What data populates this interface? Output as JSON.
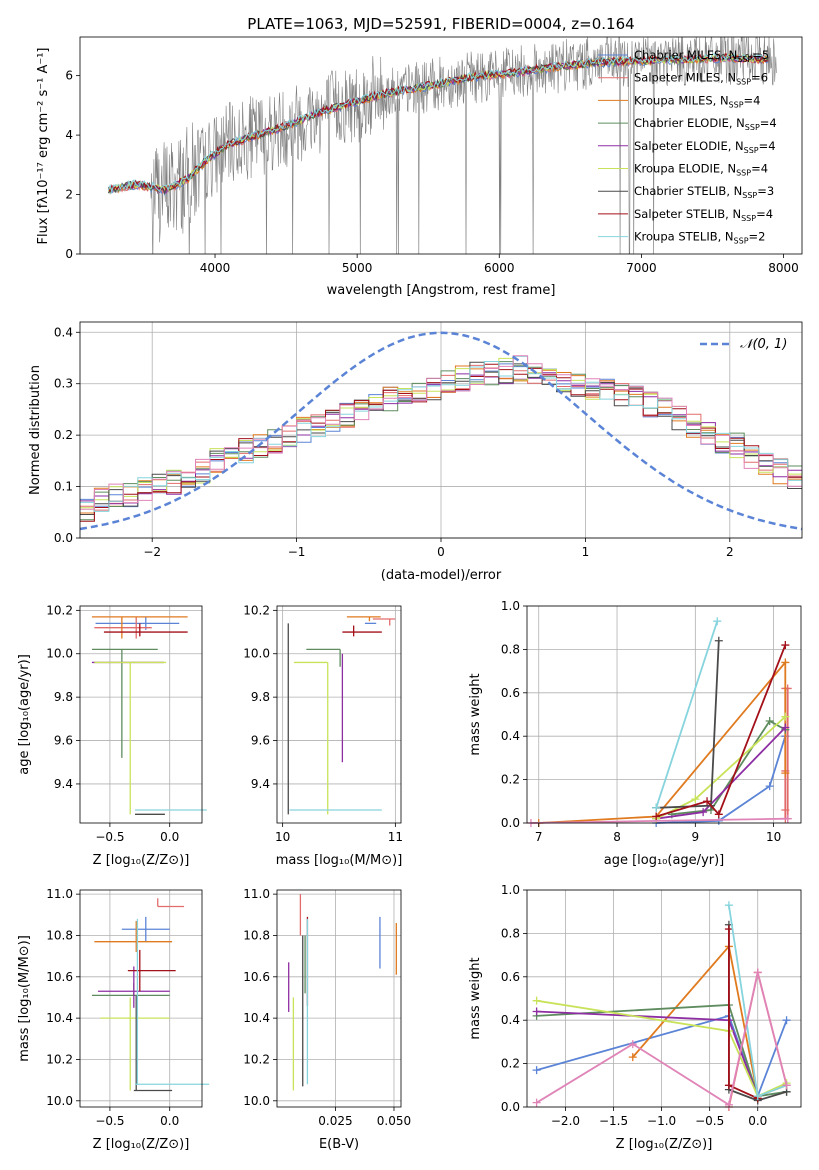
{
  "colors": {
    "c0": "#5b84d6",
    "c1": "#e26c6c",
    "c2": "#e07a1f",
    "c3": "#5e8c5e",
    "c4": "#8e2ea3",
    "c5": "#c8e35a",
    "c6": "#4a4a4a",
    "c7": "#a3101a",
    "c8": "#86d4dd",
    "c9": "#e084b8",
    "gray": "#808080",
    "normal": "#5b84d6"
  },
  "chart_data": [
    {
      "type": "line",
      "title": "PLATE=1063, MJD=52591, FIBERID=0004, z=0.164",
      "xlabel": "wavelength [Angstrom, rest frame]",
      "ylabel": "Flux [fλ10⁻¹⁷ erg cm⁻² s⁻¹ A⁻¹]",
      "xlim": [
        3050,
        8130
      ],
      "ylim": [
        0,
        7.3
      ],
      "xticks": [
        4000,
        5000,
        6000,
        7000,
        8000
      ],
      "yticks": [
        0,
        2,
        4,
        6
      ],
      "grid": false,
      "legend_position": "right",
      "series": [
        {
          "name": "Chabrier MILES, N",
          "sub": "SSP",
          "suffix": "=5",
          "color": "c0"
        },
        {
          "name": "Salpeter MILES, N",
          "sub": "SSP",
          "suffix": "=6",
          "color": "c1"
        },
        {
          "name": "Kroupa MILES, N",
          "sub": "SSP",
          "suffix": "=4",
          "color": "c2"
        },
        {
          "name": "Chabrier ELODIE, N",
          "sub": "SSP",
          "suffix": "=4",
          "color": "c3"
        },
        {
          "name": "Salpeter ELODIE, N",
          "sub": "SSP",
          "suffix": "=4",
          "color": "c4"
        },
        {
          "name": "Kroupa ELODIE, N",
          "sub": "SSP",
          "suffix": "=4",
          "color": "c5"
        },
        {
          "name": "Chabrier STELIB, N",
          "sub": "SSP",
          "suffix": "=3",
          "color": "c6"
        },
        {
          "name": "Salpeter STELIB, N",
          "sub": "SSP",
          "suffix": "=4",
          "color": "c7"
        },
        {
          "name": "Kroupa STELIB, N",
          "sub": "SSP",
          "suffix": "=2",
          "color": "c8"
        }
      ],
      "continuum": [
        [
          3250,
          2.15
        ],
        [
          3450,
          2.35
        ],
        [
          3650,
          2.15
        ],
        [
          3800,
          2.5
        ],
        [
          3950,
          3.2
        ],
        [
          4100,
          3.7
        ],
        [
          4300,
          4.0
        ],
        [
          4500,
          4.3
        ],
        [
          4700,
          4.7
        ],
        [
          4900,
          5.0
        ],
        [
          5200,
          5.4
        ],
        [
          5500,
          5.65
        ],
        [
          5800,
          5.95
        ],
        [
          6100,
          6.1
        ],
        [
          6400,
          6.3
        ],
        [
          6700,
          6.45
        ],
        [
          7000,
          6.5
        ],
        [
          7300,
          6.55
        ],
        [
          7600,
          6.6
        ],
        [
          7900,
          6.55
        ]
      ]
    },
    {
      "type": "histogram",
      "xlabel": "(data-model)/error",
      "ylabel": "Normed distribution",
      "xlim": [
        -2.5,
        2.5
      ],
      "ylim": [
        0,
        0.42
      ],
      "xticks": [
        -2,
        -1,
        0,
        1,
        2
      ],
      "yticks": [
        0.0,
        0.1,
        0.2,
        0.3,
        0.4
      ],
      "grid": true,
      "legend": "𝒩(0, 1)",
      "normal_curve": {
        "mu": 0,
        "sigma": 1
      },
      "bin_width": 0.1,
      "base_profile": [
        0.055,
        0.075,
        0.085,
        0.085,
        0.095,
        0.1,
        0.11,
        0.12,
        0.13,
        0.15,
        0.16,
        0.17,
        0.18,
        0.19,
        0.2,
        0.21,
        0.22,
        0.23,
        0.24,
        0.25,
        0.26,
        0.27,
        0.275,
        0.28,
        0.29,
        0.3,
        0.31,
        0.32,
        0.32,
        0.325,
        0.33,
        0.32,
        0.31,
        0.3,
        0.295,
        0.29,
        0.29,
        0.28,
        0.27,
        0.26,
        0.25,
        0.235,
        0.22,
        0.2,
        0.19,
        0.18,
        0.16,
        0.145,
        0.13,
        0.12
      ]
    },
    {
      "type": "errorbar",
      "xlabel": "Z [log₁₀(Z/Z⊙)]",
      "ylabel": "age  [log₁₀(age/yr)]",
      "xlim": [
        -0.75,
        0.27
      ],
      "ylim": [
        9.22,
        10.22
      ],
      "xticks": [
        -0.5,
        0.0
      ],
      "yticks": [
        9.4,
        9.6,
        9.8,
        10.0,
        10.2
      ],
      "points": [
        {
          "color": "c0",
          "x": -0.2,
          "xerr": [
            0.42,
            0.28
          ],
          "y": 10.14,
          "yerr": [
            0.03,
            0.03
          ]
        },
        {
          "color": "c1",
          "x": -0.28,
          "xerr": [
            0.35,
            0.13
          ],
          "y": 10.12,
          "yerr": [
            0.05,
            0.05
          ]
        },
        {
          "color": "c2",
          "x": -0.4,
          "xerr": [
            0.25,
            0.55
          ],
          "y": 10.17,
          "yerr": [
            0.1,
            0.0
          ]
        },
        {
          "color": "c3",
          "x": -0.4,
          "xerr": [
            0.25,
            0.3
          ],
          "y": 10.02,
          "yerr": [
            0.5,
            0.0
          ]
        },
        {
          "color": "c4",
          "x": -0.35,
          "xerr": [
            0.3,
            0.3
          ],
          "y": 9.96,
          "yerr": [
            0.0,
            0.0
          ]
        },
        {
          "color": "c5",
          "x": -0.33,
          "xerr": [
            0.3,
            0.3
          ],
          "y": 9.96,
          "yerr": [
            0.7,
            0.0
          ]
        },
        {
          "color": "c6",
          "x": -0.29,
          "xerr": [
            0.0,
            0.25
          ],
          "y": 9.26,
          "yerr": [
            0.0,
            0.0
          ]
        },
        {
          "color": "c7",
          "x": -0.25,
          "xerr": [
            0.3,
            0.4
          ],
          "y": 10.1,
          "yerr": [
            0.02,
            0.04
          ]
        },
        {
          "color": "c8",
          "x": -0.27,
          "xerr": [
            0.02,
            0.58
          ],
          "y": 9.28,
          "yerr": [
            0.0,
            0.0
          ]
        }
      ]
    },
    {
      "type": "errorbar",
      "xlabel": "mass [log₁₀(M/M⊙)]",
      "ylabel": "",
      "xlim": [
        9.95,
        11.05
      ],
      "ylim": [
        9.22,
        10.22
      ],
      "xticks": [
        10,
        11
      ],
      "yticks": [
        9.4,
        9.6,
        9.8,
        10.0,
        10.2
      ],
      "points": [
        {
          "color": "c0",
          "x": 10.83,
          "xerr": [
            0.1,
            0.0
          ],
          "y": 10.14,
          "yerr": [
            0.0,
            0.0
          ]
        },
        {
          "color": "c1",
          "x": 10.95,
          "xerr": [
            0.15,
            0.05
          ],
          "y": 10.16,
          "yerr": [
            0.03,
            0.0
          ]
        },
        {
          "color": "c2",
          "x": 10.77,
          "xerr": [
            0.2,
            0.1
          ],
          "y": 10.17,
          "yerr": [
            0.02,
            0.0
          ]
        },
        {
          "color": "c3",
          "x": 10.51,
          "xerr": [
            0.3,
            0.0
          ],
          "y": 10.02,
          "yerr": [
            0.08,
            0.0
          ]
        },
        {
          "color": "c4",
          "x": 10.53,
          "xerr": [
            0.0,
            0.0
          ],
          "y": 10.0,
          "yerr": [
            0.5,
            0.0
          ]
        },
        {
          "color": "c5",
          "x": 10.4,
          "xerr": [
            0.3,
            0.0
          ],
          "y": 9.96,
          "yerr": [
            0.7,
            0.0
          ]
        },
        {
          "color": "c6",
          "x": 10.05,
          "xerr": [
            0.0,
            0.0
          ],
          "y": 9.26,
          "yerr": [
            0.0,
            0.88
          ]
        },
        {
          "color": "c7",
          "x": 10.63,
          "xerr": [
            0.1,
            0.25
          ],
          "y": 10.1,
          "yerr": [
            0.02,
            0.03
          ]
        },
        {
          "color": "c8",
          "x": 10.08,
          "xerr": [
            0.02,
            0.8
          ],
          "y": 9.28,
          "yerr": [
            0.0,
            0.0
          ]
        }
      ]
    },
    {
      "type": "line",
      "xlabel": "age  [log₁₀(age/yr)]",
      "ylabel": "mass weight",
      "xlim": [
        6.85,
        10.35
      ],
      "ylim": [
        0,
        1.0
      ],
      "xticks": [
        7,
        8,
        9,
        10
      ],
      "yticks": [
        0.0,
        0.2,
        0.4,
        0.6,
        0.8,
        1.0
      ],
      "grid": true,
      "series": [
        {
          "color": "c0",
          "x": [
            8.5,
            9.3,
            9.95,
            10.15
          ],
          "y": [
            0.0,
            0.01,
            0.17,
            0.4
          ]
        },
        {
          "color": "c1",
          "x": [
            10.15,
            10.15,
            10.15,
            10.15,
            10.18,
            10.18
          ],
          "y": [
            0.02,
            0.06,
            0.24,
            0.62,
            0.62,
            0.02
          ]
        },
        {
          "color": "c2",
          "x": [
            7.0,
            8.5,
            10.15,
            10.15
          ],
          "y": [
            0.0,
            0.03,
            0.74,
            0.23
          ]
        },
        {
          "color": "c3",
          "x": [
            8.7,
            9.2,
            9.95,
            10.15
          ],
          "y": [
            0.04,
            0.06,
            0.47,
            0.43
          ]
        },
        {
          "color": "c4",
          "x": [
            8.5,
            9.1,
            10.15
          ],
          "y": [
            0.02,
            0.05,
            0.44
          ]
        },
        {
          "color": "c5",
          "x": [
            8.5,
            9.0,
            10.15
          ],
          "y": [
            0.02,
            0.11,
            0.49
          ]
        },
        {
          "color": "c6",
          "x": [
            8.5,
            9.2,
            9.3
          ],
          "y": [
            0.07,
            0.08,
            0.84
          ]
        },
        {
          "color": "c7",
          "x": [
            8.5,
            9.15,
            9.3,
            10.15
          ],
          "y": [
            0.03,
            0.1,
            0.04,
            0.82
          ]
        },
        {
          "color": "c8",
          "x": [
            8.5,
            9.28
          ],
          "y": [
            0.07,
            0.93
          ]
        },
        {
          "color": "c9",
          "x": [
            6.9,
            10.18
          ],
          "y": [
            0.0,
            0.02
          ]
        }
      ]
    },
    {
      "type": "errorbar",
      "xlabel": "Z [log₁₀(Z/Z⊙)]",
      "ylabel": "mass [log₁₀(M/M⊙)]",
      "xlim": [
        -0.75,
        0.27
      ],
      "ylim": [
        9.97,
        11.02
      ],
      "xticks": [
        -0.5,
        0.0
      ],
      "yticks": [
        10.0,
        10.2,
        10.4,
        10.6,
        10.8,
        11.0
      ],
      "points": [
        {
          "color": "c0",
          "x": -0.2,
          "xerr": [
            0.2,
            0.2
          ],
          "y": 10.83,
          "yerr": [
            0.06,
            0.06
          ]
        },
        {
          "color": "c1",
          "x": -0.1,
          "xerr": [
            0.0,
            0.22
          ],
          "y": 10.94,
          "yerr": [
            0.0,
            0.04
          ]
        },
        {
          "color": "c2",
          "x": -0.28,
          "xerr": [
            0.35,
            0.3
          ],
          "y": 10.77,
          "yerr": [
            0.05,
            0.1
          ]
        },
        {
          "color": "c3",
          "x": -0.3,
          "xerr": [
            0.35,
            0.3
          ],
          "y": 10.51,
          "yerr": [
            0.0,
            0.06
          ]
        },
        {
          "color": "c4",
          "x": -0.3,
          "xerr": [
            0.3,
            0.3
          ],
          "y": 10.53,
          "yerr": [
            0.08,
            0.12
          ]
        },
        {
          "color": "c5",
          "x": -0.33,
          "xerr": [
            0.25,
            0.33
          ],
          "y": 10.4,
          "yerr": [
            0.35,
            0.1
          ]
        },
        {
          "color": "c6",
          "x": -0.28,
          "xerr": [
            0.02,
            0.3
          ],
          "y": 10.05,
          "yerr": [
            0.0,
            0.46
          ]
        },
        {
          "color": "c7",
          "x": -0.25,
          "xerr": [
            0.1,
            0.3
          ],
          "y": 10.63,
          "yerr": [
            0.1,
            0.1
          ]
        },
        {
          "color": "c8",
          "x": -0.27,
          "xerr": [
            0.02,
            0.6
          ],
          "y": 10.08,
          "yerr": [
            0.0,
            0.8
          ]
        }
      ]
    },
    {
      "type": "errorbar",
      "xlabel": "E(B-V)",
      "ylabel": "",
      "xlim": [
        0.0,
        0.053
      ],
      "ylim": [
        9.97,
        11.02
      ],
      "xticks": [
        0.025,
        0.05
      ],
      "yticks": [
        10.0,
        10.2,
        10.4,
        10.6,
        10.8,
        11.0
      ],
      "points": [
        {
          "color": "c0",
          "x": 0.044,
          "xerr": [
            0.0,
            0.0
          ],
          "y": 10.76,
          "yerr": [
            0.12,
            0.13
          ]
        },
        {
          "color": "c1",
          "x": 0.01,
          "xerr": [
            0.0,
            0.0
          ],
          "y": 10.9,
          "yerr": [
            0.1,
            0.1
          ]
        },
        {
          "color": "c2",
          "x": 0.051,
          "xerr": [
            0.0,
            0.0
          ],
          "y": 10.74,
          "yerr": [
            0.13,
            0.12
          ]
        },
        {
          "color": "c3",
          "x": 0.012,
          "xerr": [
            0.0,
            0.0
          ],
          "y": 10.6,
          "yerr": [
            0.08,
            0.2
          ]
        },
        {
          "color": "c4",
          "x": 0.005,
          "xerr": [
            0.0,
            0.0
          ],
          "y": 10.53,
          "yerr": [
            0.1,
            0.14
          ]
        },
        {
          "color": "c5",
          "x": 0.007,
          "xerr": [
            0.0,
            0.0
          ],
          "y": 10.4,
          "yerr": [
            0.35,
            0.1
          ]
        },
        {
          "color": "c6",
          "x": 0.011,
          "xerr": [
            0.0,
            0.0
          ],
          "y": 10.45,
          "yerr": [
            0.38,
            0.35
          ]
        },
        {
          "color": "c7",
          "x": 0.013,
          "xerr": [
            0.0,
            0.0
          ],
          "y": 10.66,
          "yerr": [
            0.2,
            0.23
          ]
        },
        {
          "color": "c8",
          "x": 0.013,
          "xerr": [
            0.0,
            0.0
          ],
          "y": 10.5,
          "yerr": [
            0.42,
            0.38
          ]
        }
      ]
    },
    {
      "type": "line",
      "xlabel": "Z [log₁₀(Z/Z⊙)]",
      "ylabel": "mass weight",
      "xlim": [
        -2.4,
        0.45
      ],
      "ylim": [
        0,
        1.0
      ],
      "xticks": [
        -2.0,
        -1.5,
        -1.0,
        -0.5,
        0.0
      ],
      "yticks": [
        0.0,
        0.2,
        0.4,
        0.6,
        0.8,
        1.0
      ],
      "grid": true,
      "series": [
        {
          "color": "c0",
          "x": [
            -2.3,
            -0.3,
            0.0,
            0.3
          ],
          "y": [
            0.17,
            0.42,
            0.05,
            0.4
          ]
        },
        {
          "color": "c1",
          "x": [
            -0.3,
            0.0,
            0.3
          ],
          "y": [
            0.0,
            0.62,
            0.1
          ]
        },
        {
          "color": "c2",
          "x": [
            -1.3,
            -0.3,
            0.0,
            0.3
          ],
          "y": [
            0.23,
            0.74,
            0.05,
            0.1
          ]
        },
        {
          "color": "c3",
          "x": [
            -2.3,
            -0.3,
            0.0,
            0.3
          ],
          "y": [
            0.42,
            0.47,
            0.05,
            0.07
          ]
        },
        {
          "color": "c4",
          "x": [
            -2.3,
            -0.3,
            0.0
          ],
          "y": [
            0.44,
            0.4,
            0.05
          ]
        },
        {
          "color": "c5",
          "x": [
            -2.3,
            -0.3,
            0.0,
            0.3
          ],
          "y": [
            0.49,
            0.35,
            0.05,
            0.11
          ]
        },
        {
          "color": "c6",
          "x": [
            -0.3,
            -0.3,
            0.0,
            0.3
          ],
          "y": [
            0.84,
            0.08,
            0.03,
            0.07
          ]
        },
        {
          "color": "c7",
          "x": [
            -0.3,
            -0.3,
            0.0
          ],
          "y": [
            0.82,
            0.1,
            0.04
          ]
        },
        {
          "color": "c8",
          "x": [
            -0.3,
            0.0,
            0.3
          ],
          "y": [
            0.93,
            0.05,
            0.1
          ]
        },
        {
          "color": "c9",
          "x": [
            -2.3,
            -1.3,
            -0.3,
            0.0,
            0.3
          ],
          "y": [
            0.02,
            0.29,
            0.01,
            0.62,
            0.1
          ]
        }
      ]
    }
  ]
}
